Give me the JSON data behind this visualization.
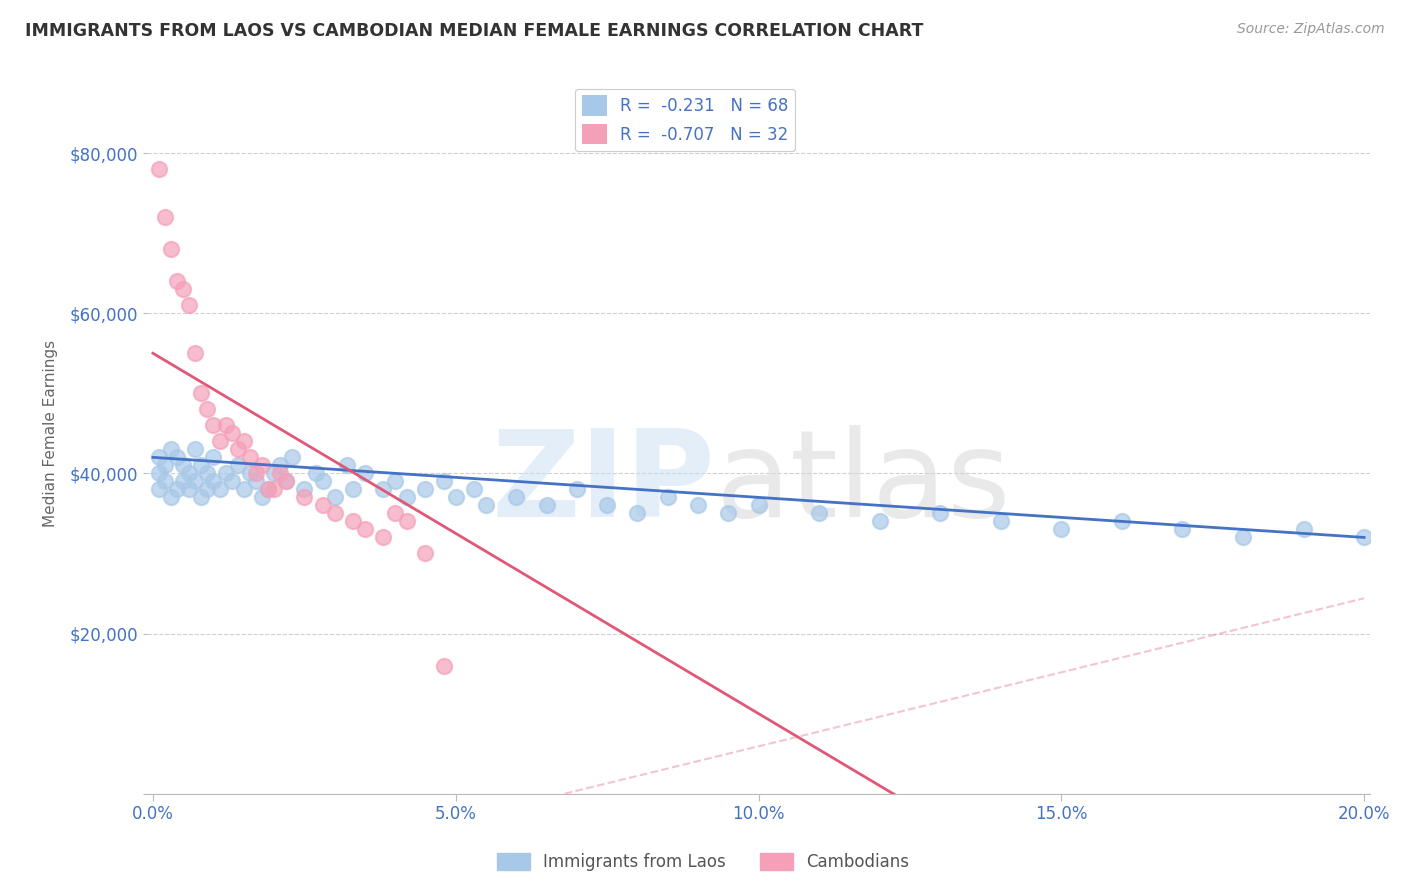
{
  "title": "IMMIGRANTS FROM LAOS VS CAMBODIAN MEDIAN FEMALE EARNINGS CORRELATION CHART",
  "source": "Source: ZipAtlas.com",
  "ylabel": "Median Female Earnings",
  "xlim": [
    -0.001,
    0.201
  ],
  "ylim": [
    0,
    90000
  ],
  "yticks": [
    0,
    20000,
    40000,
    60000,
    80000
  ],
  "xticks": [
    0.0,
    0.05,
    0.1,
    0.15,
    0.2
  ],
  "xtick_labels": [
    "0.0%",
    "5.0%",
    "10.0%",
    "15.0%",
    "20.0%"
  ],
  "ytick_labels": [
    "",
    "$20,000",
    "$40,000",
    "$60,000",
    "$80,000"
  ],
  "laos_marker_color": "#a8c8e8",
  "cambodian_marker_color": "#f4a0b8",
  "laos_line_color": "#4472c4",
  "cambodian_line_color": "#e05878",
  "laos_R": -0.231,
  "laos_N": 68,
  "cambodian_R": -0.707,
  "cambodian_N": 32,
  "background_color": "#ffffff",
  "grid_color": "#d0d0d0",
  "title_color": "#333333",
  "axis_tick_color": "#4472c4",
  "ylabel_color": "#666666",
  "laos_x": [
    0.001,
    0.001,
    0.001,
    0.002,
    0.002,
    0.003,
    0.003,
    0.004,
    0.004,
    0.005,
    0.005,
    0.006,
    0.006,
    0.007,
    0.007,
    0.008,
    0.008,
    0.009,
    0.009,
    0.01,
    0.01,
    0.011,
    0.012,
    0.013,
    0.014,
    0.015,
    0.016,
    0.017,
    0.018,
    0.019,
    0.02,
    0.021,
    0.022,
    0.023,
    0.025,
    0.027,
    0.028,
    0.03,
    0.032,
    0.033,
    0.035,
    0.038,
    0.04,
    0.042,
    0.045,
    0.048,
    0.05,
    0.053,
    0.055,
    0.06,
    0.065,
    0.07,
    0.075,
    0.08,
    0.085,
    0.09,
    0.095,
    0.1,
    0.11,
    0.12,
    0.13,
    0.14,
    0.15,
    0.16,
    0.17,
    0.18,
    0.19,
    0.2
  ],
  "laos_y": [
    42000,
    40000,
    38000,
    41000,
    39000,
    43000,
    37000,
    42000,
    38000,
    41000,
    39000,
    40000,
    38000,
    43000,
    39000,
    41000,
    37000,
    40000,
    38000,
    42000,
    39000,
    38000,
    40000,
    39000,
    41000,
    38000,
    40000,
    39000,
    37000,
    38000,
    40000,
    41000,
    39000,
    42000,
    38000,
    40000,
    39000,
    37000,
    41000,
    38000,
    40000,
    38000,
    39000,
    37000,
    38000,
    39000,
    37000,
    38000,
    36000,
    37000,
    36000,
    38000,
    36000,
    35000,
    37000,
    36000,
    35000,
    36000,
    35000,
    34000,
    35000,
    34000,
    33000,
    34000,
    33000,
    32000,
    33000,
    32000
  ],
  "cambodian_x": [
    0.001,
    0.002,
    0.003,
    0.004,
    0.005,
    0.006,
    0.007,
    0.008,
    0.009,
    0.01,
    0.011,
    0.012,
    0.013,
    0.014,
    0.015,
    0.016,
    0.017,
    0.018,
    0.019,
    0.02,
    0.021,
    0.022,
    0.025,
    0.028,
    0.03,
    0.033,
    0.035,
    0.038,
    0.04,
    0.042,
    0.045,
    0.048
  ],
  "cambodian_y": [
    78000,
    72000,
    68000,
    64000,
    63000,
    61000,
    55000,
    50000,
    48000,
    46000,
    44000,
    46000,
    45000,
    43000,
    44000,
    42000,
    40000,
    41000,
    38000,
    38000,
    40000,
    39000,
    37000,
    36000,
    35000,
    34000,
    33000,
    32000,
    35000,
    34000,
    30000,
    16000
  ]
}
